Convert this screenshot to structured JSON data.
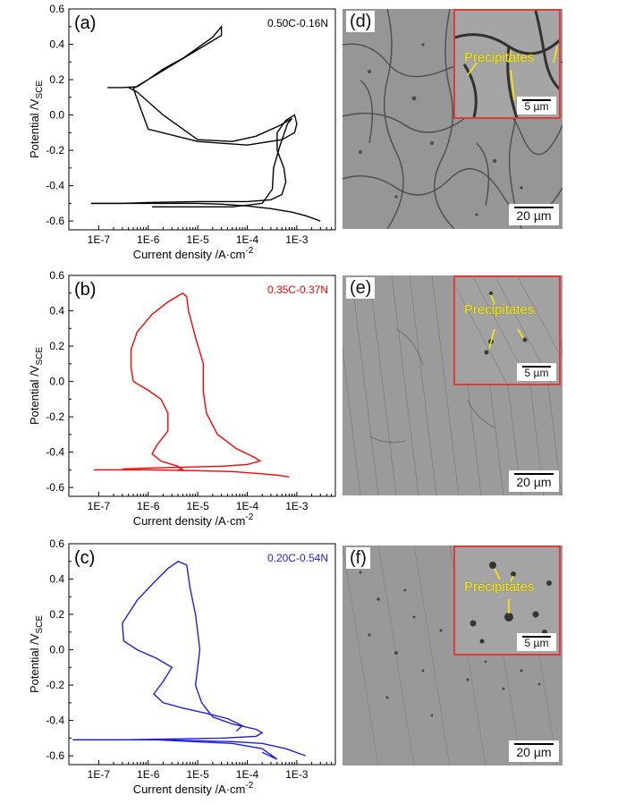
{
  "chart_data": [
    {
      "type": "line",
      "panel": "(a)",
      "legend": "0.50C-0.16N",
      "color": "#000000",
      "xlabel": "Current density /A·cm",
      "xlabel_sup": "-2",
      "ylabel": "Potential /V",
      "ylabel_sub": "SCE",
      "xscale": "log",
      "xlim": [
        2.5e-08,
        0.006
      ],
      "ylim": [
        -0.65,
        0.6
      ],
      "xticks": [
        "1E-7",
        "1E-6",
        "1E-5",
        "1E-4",
        "1E-3"
      ],
      "yticks": [
        "-0.6",
        "-0.4",
        "-0.2",
        "0.0",
        "0.2",
        "0.4",
        "0.6"
      ],
      "series": [
        {
          "x": [
            0.003,
            0.0015,
            0.0008,
            0.0003,
            0.0001,
            3e-05,
            1e-05,
            3e-06,
            1e-06,
            3e-07,
            1e-07,
            7e-08
          ],
          "y": [
            -0.6,
            -0.57,
            -0.55,
            -0.53,
            -0.515,
            -0.505,
            -0.5,
            -0.5,
            -0.5,
            -0.5,
            -0.5,
            -0.5
          ]
        },
        {
          "x": [
            7e-08,
            3e-07,
            1e-06,
            1e-05,
            0.0001,
            0.0003,
            0.0005,
            0.0006,
            0.00055,
            0.0004,
            0.0004,
            0.0006,
            0.0009,
            0.001,
            0.0009,
            0.0005,
            0.0001,
            1e-05,
            1e-06,
            5e-07,
            3e-05,
            3e-05,
            2e-05,
            1e-05,
            5e-06,
            2e-06,
            1e-06,
            6e-07,
            3e-07,
            1.5e-07
          ],
          "y": [
            -0.5,
            -0.5,
            -0.495,
            -0.49,
            -0.49,
            -0.48,
            -0.45,
            -0.38,
            -0.3,
            -0.2,
            -0.1,
            -0.03,
            0.0,
            -0.05,
            -0.1,
            -0.14,
            -0.17,
            -0.15,
            -0.08,
            0.15,
            0.45,
            0.5,
            0.44,
            0.38,
            0.32,
            0.26,
            0.2,
            0.16,
            0.155,
            0.155
          ]
        },
        {
          "x": [
            1.2e-06,
            8e-06,
            5e-05,
            0.0002,
            0.00032,
            0.00034,
            0.00045,
            0.00065,
            0.0008,
            0.00045,
            0.00015,
            5e-05,
            1e-05,
            2e-06,
            6e-07,
            4e-07
          ],
          "y": [
            -0.52,
            -0.52,
            -0.52,
            -0.5,
            -0.42,
            -0.3,
            -0.18,
            -0.05,
            -0.02,
            -0.06,
            -0.12,
            -0.15,
            -0.14,
            0.0,
            0.13,
            0.155
          ]
        }
      ]
    },
    {
      "type": "line",
      "panel": "(b)",
      "legend": "0.35C-0.37N",
      "color": "#ff0000",
      "xlabel": "Current density /A·cm",
      "xlabel_sup": "-2",
      "ylabel": "Potential /V",
      "ylabel_sub": "SCE",
      "xscale": "log",
      "xlim": [
        2.5e-08,
        0.006
      ],
      "ylim": [
        -0.65,
        0.6
      ],
      "xticks": [
        "1E-7",
        "1E-6",
        "1E-5",
        "1E-4",
        "1E-3"
      ],
      "yticks": [
        "-0.6",
        "-0.4",
        "-0.2",
        "0.0",
        "0.2",
        "0.4",
        "0.6"
      ],
      "series": [
        {
          "x": [
            8e-08,
            3e-07,
            1e-06,
            1e-05,
            5e-05,
            0.00015,
            0.0004,
            0.0007
          ],
          "y": [
            -0.5,
            -0.5,
            -0.5,
            -0.505,
            -0.51,
            -0.52,
            -0.53,
            -0.54
          ]
        },
        {
          "x": [
            3e-07,
            1e-06,
            5e-06,
            3e-05,
            0.0001,
            0.00018,
            0.00014,
            6e-05,
            2.5e-05,
            1.5e-05,
            1.3e-05,
            1.3e-05,
            9e-06,
            6.5e-06,
            6e-06,
            5e-06,
            2.5e-06,
            1.2e-06,
            6e-07,
            4.5e-07,
            4.5e-07,
            5e-07,
            1e-06,
            1.8e-06,
            2.5e-06,
            2.5e-06,
            1.5e-06,
            1.2e-06,
            1.8e-06,
            4e-06,
            5e-06,
            4e-06
          ],
          "y": [
            -0.495,
            -0.49,
            -0.485,
            -0.48,
            -0.47,
            -0.45,
            -0.43,
            -0.38,
            -0.3,
            -0.18,
            -0.06,
            0.1,
            0.25,
            0.4,
            0.48,
            0.5,
            0.45,
            0.38,
            0.28,
            0.18,
            0.08,
            0.0,
            -0.05,
            -0.1,
            -0.18,
            -0.28,
            -0.36,
            -0.41,
            -0.45,
            -0.48,
            -0.5,
            -0.5
          ]
        }
      ]
    },
    {
      "type": "line",
      "panel": "(c)",
      "legend": "0.20C-0.54N",
      "color": "#1f1fe0",
      "xlabel": "Current density /A·cm",
      "xlabel_sup": "-2",
      "ylabel": "Potential /V",
      "ylabel_sub": "SCE",
      "xscale": "log",
      "xlim": [
        2.5e-08,
        0.006
      ],
      "ylim": [
        -0.65,
        0.6
      ],
      "xticks": [
        "1E-7",
        "1E-6",
        "1E-5",
        "1E-4",
        "1E-3"
      ],
      "yticks": [
        "-0.6",
        "-0.4",
        "-0.2",
        "0.0",
        "0.2",
        "0.4",
        "0.6"
      ],
      "series": [
        {
          "x": [
            3e-08,
            1e-07,
            5e-07,
            2e-06,
            1e-05,
            5e-05,
            0.0002,
            0.0006,
            0.0015
          ],
          "y": [
            -0.51,
            -0.51,
            -0.51,
            -0.51,
            -0.515,
            -0.52,
            -0.53,
            -0.56,
            -0.6
          ]
        },
        {
          "x": [
            1.5e-06,
            8e-06,
            5e-05,
            0.0002,
            0.0004,
            0.0002
          ],
          "y": [
            -0.51,
            -0.52,
            -0.53,
            -0.56,
            -0.62,
            -0.58
          ]
        },
        {
          "x": [
            3e-08,
            3e-07,
            3e-06,
            3e-05,
            0.00015,
            0.0002,
            0.00015,
            5e-05,
            2e-05,
            1.2e-05,
            9e-06,
            1e-05,
            1.1e-05,
            1e-05,
            9e-06,
            7e-06,
            6e-06,
            4e-06,
            2.5e-06,
            1.3e-06,
            6e-07,
            3e-07,
            3.2e-07,
            6e-07,
            1.5e-06,
            3e-06,
            2e-06,
            1.3e-06,
            2e-06,
            5e-06,
            1.5e-05,
            4e-05,
            8e-05,
            6e-05
          ],
          "y": [
            -0.51,
            -0.51,
            -0.505,
            -0.5,
            -0.49,
            -0.47,
            -0.45,
            -0.42,
            -0.38,
            -0.3,
            -0.2,
            -0.1,
            0.0,
            0.1,
            0.2,
            0.35,
            0.48,
            0.5,
            0.46,
            0.38,
            0.28,
            0.15,
            0.05,
            0.0,
            -0.05,
            -0.1,
            -0.18,
            -0.25,
            -0.3,
            -0.33,
            -0.36,
            -0.39,
            -0.43,
            -0.46
          ]
        }
      ]
    }
  ],
  "sem": [
    {
      "panel": "(d)",
      "scale": "20 µm",
      "inset_scale": "5 µm",
      "inset_label": "Precipitates"
    },
    {
      "panel": "(e)",
      "scale": "20 µm",
      "inset_scale": "5 µm",
      "inset_label": "Precipitates"
    },
    {
      "panel": "(f)",
      "scale": "20 µm",
      "inset_scale": "5 µm",
      "inset_label": "Precipitates"
    }
  ]
}
